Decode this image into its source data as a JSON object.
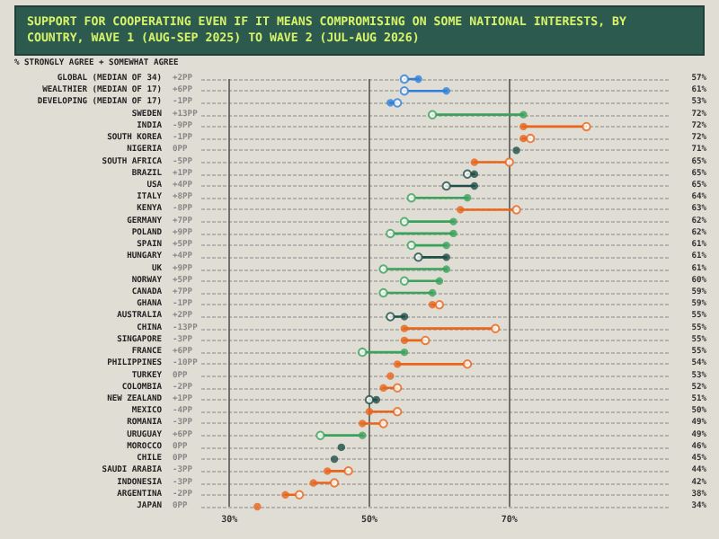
{
  "chart_data": {
    "type": "scatter",
    "orientation": "horizontal",
    "title": "SUPPORT FOR COOPERATING EVEN IF IT MEANS COMPROMISING ON SOME NATIONAL INTERESTS, BY COUNTRY, WAVE 1 (AUG-SEP 2025) TO WAVE 2 (JUL-AUG 2026)",
    "subtitle": "% STRONGLY AGREE + SOMEWHAT AGREE",
    "categories": [
      "GLOBAL (MEDIAN OF 34)",
      "WEALTHIER (MEDIAN OF 17)",
      "DEVELOPING (MEDIAN OF 17)",
      "SWEDEN",
      "INDIA",
      "SOUTH KOREA",
      "NIGERIA",
      "SOUTH AFRICA",
      "BRAZIL",
      "USA",
      "ITALY",
      "KENYA",
      "GERMANY",
      "POLAND",
      "SPAIN",
      "HUNGARY",
      "UK",
      "NORWAY",
      "CANADA",
      "GHANA",
      "AUSTRALIA",
      "CHINA",
      "SINGAPORE",
      "FRANCE",
      "PHILIPPINES",
      "TURKEY",
      "COLOMBIA",
      "NEW ZEALAND",
      "MEXICO",
      "ROMANIA",
      "URUGUAY",
      "MOROCCO",
      "CHILE",
      "SAUDI ARABIA",
      "INDONESIA",
      "ARGENTINA",
      "JAPAN"
    ],
    "series": [
      {
        "marker": "circle",
        "values": [
          55,
          55,
          54,
          59,
          81,
          73,
          null,
          70,
          64,
          61,
          56,
          71,
          55,
          53,
          56,
          57,
          52,
          55,
          52,
          60,
          53,
          68,
          58,
          49,
          64,
          null,
          54,
          50,
          54,
          52,
          43,
          null,
          null,
          47,
          45,
          40,
          null
        ],
        "colors": [
          "#2f7fd8",
          "#2f7fd8",
          "#2f7fd8",
          "#3aa35a",
          "#e8651a",
          "#e8651a",
          null,
          "#e8651a",
          "#1f4f47",
          "#1f4f47",
          "#3aa35a",
          "#e8651a",
          "#3aa35a",
          "#3aa35a",
          "#3aa35a",
          "#1f4f47",
          "#3aa35a",
          "#3aa35a",
          "#3aa35a",
          "#e8651a",
          "#1f4f47",
          "#e8651a",
          "#e8651a",
          "#3aa35a",
          "#e8651a",
          null,
          "#e8651a",
          "#1f4f47",
          "#e8651a",
          "#e8651a",
          "#3aa35a",
          null,
          null,
          "#e8651a",
          "#e8651a",
          "#e8651a",
          null
        ]
      },
      {
        "marker": "circle",
        "values": [
          57,
          61,
          53,
          72,
          72,
          72,
          71,
          65,
          65,
          65,
          64,
          63,
          62,
          62,
          61,
          61,
          61,
          60,
          59,
          59,
          55,
          55,
          55,
          55,
          54,
          53,
          52,
          51,
          50,
          49,
          49,
          46,
          45,
          44,
          42,
          38,
          34
        ],
        "value_labels": [
          "57%",
          "61%",
          "53%",
          "72%",
          "72%",
          "72%",
          "71%",
          "65%",
          "65%",
          "65%",
          "64%",
          "63%",
          "62%",
          "62%",
          "61%",
          "61%",
          "61%",
          "60%",
          "59%",
          "59%",
          "55%",
          "55%",
          "55%",
          "55%",
          "54%",
          "53%",
          "52%",
          "51%",
          "50%",
          "49%",
          "49%",
          "46%",
          "45%",
          "44%",
          "42%",
          "38%",
          "34%"
        ],
        "colors": [
          "#2f7fd8",
          "#2f7fd8",
          "#2f7fd8",
          "#3aa35a",
          "#e8651a",
          "#e8651a",
          "#1f4f47",
          "#e8651a",
          "#1f4f47",
          "#1f4f47",
          "#3aa35a",
          "#e8651a",
          "#3aa35a",
          "#3aa35a",
          "#3aa35a",
          "#1f4f47",
          "#3aa35a",
          "#3aa35a",
          "#3aa35a",
          "#e8651a",
          "#1f4f47",
          "#e8651a",
          "#e8651a",
          "#3aa35a",
          "#e8651a",
          "#e8651a",
          "#e8651a",
          "#1f4f47",
          "#e8651a",
          "#e8651a",
          "#3aa35a",
          "#1f4f47",
          "#1f4f47",
          "#e8651a",
          "#e8651a",
          "#e8651a",
          "#e8651a"
        ]
      }
    ],
    "annotations": [
      "+2PP",
      "+6PP",
      "-1PP",
      "+13PP",
      "-9PP",
      "-1PP",
      "0PP",
      "-5PP",
      "+1PP",
      "+4PP",
      "+8PP",
      "-8PP",
      "+7PP",
      "+9PP",
      "+5PP",
      "+4PP",
      "+9PP",
      "+5PP",
      "+7PP",
      "-1PP",
      "+2PP",
      "-13PP",
      "-3PP",
      "+6PP",
      "-10PP",
      "0PP",
      "-2PP",
      "+1PP",
      "-4PP",
      "-3PP",
      "+6PP",
      "0PP",
      "0PP",
      "-3PP",
      "-3PP",
      "-2PP",
      "0PP"
    ],
    "xlim": [
      26,
      93
    ],
    "xticks": [
      {
        "value": 30,
        "label": "30%"
      },
      {
        "value": 50,
        "label": "50%"
      },
      {
        "value": 70,
        "label": "70%"
      }
    ],
    "grid": true
  }
}
